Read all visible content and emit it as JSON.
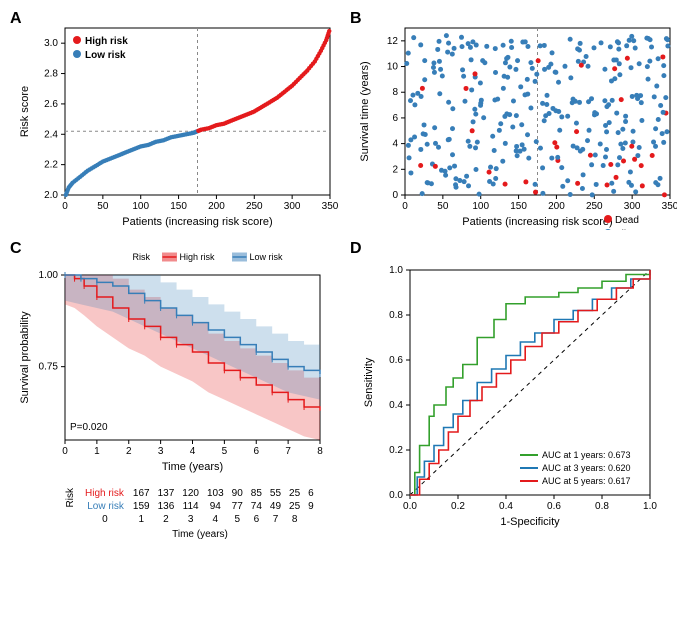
{
  "colors": {
    "high_risk": "#e41a1c",
    "low_risk": "#377eb8",
    "high_risk_fill": "rgba(228,26,28,0.25)",
    "low_risk_fill": "rgba(55,126,184,0.25)",
    "grid": "#888888",
    "axis": "#000000",
    "bg": "#ffffff",
    "roc_1y": "#33a02c",
    "roc_3y": "#1f78b4",
    "roc_5y": "#e31a1c",
    "diag": "#000000"
  },
  "panelA": {
    "label": "A",
    "xlabel": "Patients (increasing risk score)",
    "ylabel": "Risk score",
    "xlim": [
      0,
      350
    ],
    "ylim": [
      2.0,
      3.1
    ],
    "xticks": [
      0,
      50,
      100,
      150,
      200,
      250,
      300,
      350
    ],
    "yticks": [
      2.0,
      2.2,
      2.4,
      2.6,
      2.8,
      3.0
    ],
    "cutoff_x": 175,
    "cutoff_y": 2.42,
    "legend": [
      {
        "label": "High risk",
        "color": "#e41a1c"
      },
      {
        "label": "Low risk",
        "color": "#377eb8"
      }
    ],
    "curve": [
      [
        1,
        2.0
      ],
      [
        5,
        2.05
      ],
      [
        10,
        2.08
      ],
      [
        20,
        2.12
      ],
      [
        30,
        2.16
      ],
      [
        40,
        2.19
      ],
      [
        50,
        2.22
      ],
      [
        60,
        2.24
      ],
      [
        70,
        2.26
      ],
      [
        80,
        2.28
      ],
      [
        90,
        2.3
      ],
      [
        100,
        2.32
      ],
      [
        110,
        2.33
      ],
      [
        120,
        2.35
      ],
      [
        130,
        2.36
      ],
      [
        140,
        2.38
      ],
      [
        150,
        2.39
      ],
      [
        160,
        2.4
      ],
      [
        170,
        2.41
      ],
      [
        175,
        2.42
      ],
      [
        180,
        2.43
      ],
      [
        190,
        2.44
      ],
      [
        200,
        2.46
      ],
      [
        210,
        2.47
      ],
      [
        220,
        2.49
      ],
      [
        230,
        2.51
      ],
      [
        240,
        2.53
      ],
      [
        250,
        2.55
      ],
      [
        260,
        2.58
      ],
      [
        270,
        2.61
      ],
      [
        280,
        2.64
      ],
      [
        290,
        2.68
      ],
      [
        300,
        2.72
      ],
      [
        310,
        2.77
      ],
      [
        320,
        2.82
      ],
      [
        330,
        2.88
      ],
      [
        338,
        2.95
      ],
      [
        345,
        3.02
      ],
      [
        349,
        3.08
      ]
    ]
  },
  "panelB": {
    "label": "B",
    "xlabel": "Patients (increasing risk score)",
    "ylabel": "Survival time (years)",
    "xlim": [
      0,
      350
    ],
    "ylim": [
      0,
      13
    ],
    "xticks": [
      0,
      50,
      100,
      150,
      200,
      250,
      300,
      350
    ],
    "yticks": [
      0,
      2,
      4,
      6,
      8,
      10,
      12
    ],
    "cutoff_x": 175,
    "legend": [
      {
        "label": "Dead",
        "color": "#e41a1c"
      },
      {
        "label": "Alive",
        "color": "#377eb8"
      }
    ],
    "n_points": 326,
    "seed": 42
  },
  "panelC": {
    "label": "C",
    "xlabel": "Time (years)",
    "ylabel": "Survival probability",
    "xlim": [
      0,
      8
    ],
    "ylim": [
      0.55,
      1.0
    ],
    "xticks": [
      0,
      1,
      2,
      3,
      4,
      5,
      6,
      7,
      8
    ],
    "yticks": [
      0.75,
      1.0
    ],
    "pvalue_text": "P=0.020",
    "legend_title": "Risk",
    "legend": [
      {
        "label": "High risk",
        "color": "#e41a1c"
      },
      {
        "label": "Low risk",
        "color": "#377eb8"
      }
    ],
    "km_high": [
      [
        0,
        1.0
      ],
      [
        0.3,
        0.99
      ],
      [
        0.6,
        0.97
      ],
      [
        1.0,
        0.94
      ],
      [
        1.5,
        0.91
      ],
      [
        2.0,
        0.88
      ],
      [
        2.5,
        0.86
      ],
      [
        3.0,
        0.83
      ],
      [
        3.5,
        0.81
      ],
      [
        4.0,
        0.79
      ],
      [
        4.5,
        0.76
      ],
      [
        5.0,
        0.74
      ],
      [
        5.5,
        0.72
      ],
      [
        6.0,
        0.7
      ],
      [
        6.5,
        0.68
      ],
      [
        7.0,
        0.66
      ],
      [
        7.5,
        0.64
      ],
      [
        8.0,
        0.63
      ]
    ],
    "km_low": [
      [
        0,
        1.0
      ],
      [
        0.5,
        0.99
      ],
      [
        1.0,
        0.98
      ],
      [
        1.5,
        0.97
      ],
      [
        2.0,
        0.95
      ],
      [
        2.5,
        0.93
      ],
      [
        3.0,
        0.91
      ],
      [
        3.5,
        0.89
      ],
      [
        4.0,
        0.87
      ],
      [
        4.5,
        0.85
      ],
      [
        5.0,
        0.83
      ],
      [
        5.5,
        0.81
      ],
      [
        6.0,
        0.79
      ],
      [
        6.5,
        0.77
      ],
      [
        7.0,
        0.75
      ],
      [
        7.5,
        0.74
      ],
      [
        8.0,
        0.73
      ]
    ],
    "ci_band_high": 0.08,
    "ci_band_low": 0.07,
    "risk_table": {
      "title": "Risk",
      "rows": [
        {
          "label": "High risk",
          "color": "#e41a1c",
          "counts": [
            167,
            137,
            120,
            103,
            90,
            85,
            55,
            25,
            6
          ]
        },
        {
          "label": "Low risk",
          "color": "#377eb8",
          "counts": [
            159,
            136,
            114,
            94,
            77,
            74,
            49,
            25,
            9
          ]
        }
      ],
      "times": [
        0,
        1,
        2,
        3,
        4,
        5,
        6,
        7,
        8
      ]
    }
  },
  "panelD": {
    "label": "D",
    "xlabel": "1-Specificity",
    "ylabel": "Sensitivity",
    "xlim": [
      0,
      1
    ],
    "ylim": [
      0,
      1
    ],
    "xticks": [
      0.0,
      0.2,
      0.4,
      0.6,
      0.8,
      1.0
    ],
    "yticks": [
      0.0,
      0.2,
      0.4,
      0.6,
      0.8,
      1.0
    ],
    "legend": [
      {
        "label": "AUC at 1 years: 0.673",
        "color": "#33a02c"
      },
      {
        "label": "AUC at 3 years: 0.620",
        "color": "#1f78b4"
      },
      {
        "label": "AUC at 5 years: 0.617",
        "color": "#e31a1c"
      }
    ],
    "roc_1y": [
      [
        0,
        0
      ],
      [
        0.02,
        0.1
      ],
      [
        0.04,
        0.22
      ],
      [
        0.08,
        0.35
      ],
      [
        0.1,
        0.4
      ],
      [
        0.15,
        0.48
      ],
      [
        0.18,
        0.52
      ],
      [
        0.22,
        0.58
      ],
      [
        0.28,
        0.7
      ],
      [
        0.35,
        0.78
      ],
      [
        0.4,
        0.85
      ],
      [
        0.48,
        0.88
      ],
      [
        0.55,
        0.88
      ],
      [
        0.62,
        0.9
      ],
      [
        0.7,
        0.92
      ],
      [
        0.8,
        0.95
      ],
      [
        0.9,
        0.98
      ],
      [
        1,
        1
      ]
    ],
    "roc_3y": [
      [
        0,
        0
      ],
      [
        0.03,
        0.08
      ],
      [
        0.06,
        0.15
      ],
      [
        0.1,
        0.22
      ],
      [
        0.14,
        0.3
      ],
      [
        0.18,
        0.36
      ],
      [
        0.22,
        0.42
      ],
      [
        0.28,
        0.5
      ],
      [
        0.34,
        0.56
      ],
      [
        0.4,
        0.62
      ],
      [
        0.46,
        0.68
      ],
      [
        0.52,
        0.72
      ],
      [
        0.6,
        0.78
      ],
      [
        0.68,
        0.82
      ],
      [
        0.76,
        0.87
      ],
      [
        0.84,
        0.92
      ],
      [
        0.92,
        0.96
      ],
      [
        1,
        1
      ]
    ],
    "roc_5y": [
      [
        0,
        0
      ],
      [
        0.04,
        0.07
      ],
      [
        0.08,
        0.14
      ],
      [
        0.12,
        0.2
      ],
      [
        0.16,
        0.28
      ],
      [
        0.2,
        0.35
      ],
      [
        0.25,
        0.42
      ],
      [
        0.3,
        0.48
      ],
      [
        0.36,
        0.54
      ],
      [
        0.42,
        0.6
      ],
      [
        0.48,
        0.66
      ],
      [
        0.55,
        0.72
      ],
      [
        0.62,
        0.77
      ],
      [
        0.7,
        0.82
      ],
      [
        0.78,
        0.87
      ],
      [
        0.86,
        0.92
      ],
      [
        0.93,
        0.96
      ],
      [
        1,
        1
      ]
    ]
  }
}
